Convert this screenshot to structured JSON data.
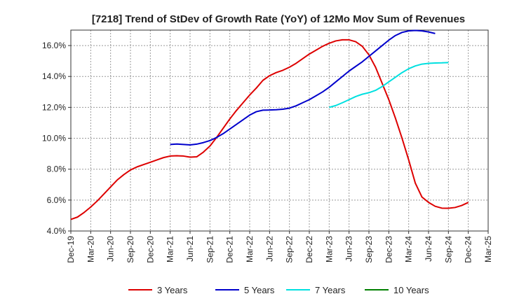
{
  "chart_data": {
    "type": "line",
    "title": "[7218]  Trend of StDev of Growth Rate (YoY) of 12Mo Mov Sum of Revenues",
    "xlabel": "",
    "ylabel": "",
    "ylim": [
      4.0,
      17.0
    ],
    "yticks": [
      4.0,
      6.0,
      8.0,
      10.0,
      12.0,
      14.0,
      16.0
    ],
    "ytick_labels": [
      "4.0%",
      "6.0%",
      "8.0%",
      "10.0%",
      "12.0%",
      "14.0%",
      "16.0%"
    ],
    "x_start": "Dec-19",
    "xtick_labels": [
      "Dec-19",
      "Mar-20",
      "Jun-20",
      "Sep-20",
      "Dec-20",
      "Mar-21",
      "Jun-21",
      "Sep-21",
      "Dec-21",
      "Mar-22",
      "Jun-22",
      "Sep-22",
      "Dec-22",
      "Mar-23",
      "Jun-23",
      "Sep-23",
      "Dec-23",
      "Mar-24",
      "Jun-24",
      "Sep-24",
      "Dec-24",
      "Mar-25"
    ],
    "grid": true,
    "legend_position": "bottom",
    "series": [
      {
        "name": "3 Years",
        "color": "#dd0000",
        "start_index": 0,
        "values": [
          4.75,
          4.9,
          5.2,
          5.55,
          5.95,
          6.4,
          6.85,
          7.3,
          7.65,
          7.95,
          8.15,
          8.3,
          8.45,
          8.6,
          8.75,
          8.85,
          8.87,
          8.85,
          8.78,
          8.8,
          9.1,
          9.5,
          10.05,
          10.65,
          11.25,
          11.8,
          12.3,
          12.8,
          13.25,
          13.75,
          14.05,
          14.25,
          14.4,
          14.6,
          14.85,
          15.15,
          15.45,
          15.7,
          15.95,
          16.15,
          16.3,
          16.37,
          16.37,
          16.25,
          15.95,
          15.4,
          14.6,
          13.55,
          12.5,
          11.3,
          10.0,
          8.6,
          7.1,
          6.2,
          5.85,
          5.6,
          5.48,
          5.47,
          5.52,
          5.65,
          5.85
        ]
      },
      {
        "name": "5 Years",
        "color": "#0000cc",
        "start_index": 15,
        "values": [
          9.6,
          9.63,
          9.6,
          9.57,
          9.62,
          9.72,
          9.85,
          10.05,
          10.3,
          10.6,
          10.9,
          11.2,
          11.5,
          11.72,
          11.82,
          11.83,
          11.85,
          11.88,
          11.95,
          12.1,
          12.3,
          12.5,
          12.75,
          13.0,
          13.3,
          13.65,
          14.0,
          14.35,
          14.65,
          14.95,
          15.3,
          15.65,
          16.0,
          16.35,
          16.65,
          16.85,
          16.95,
          16.98,
          16.95,
          16.88,
          16.78
        ]
      },
      {
        "name": "7 Years",
        "color": "#00e0e0",
        "start_index": 39,
        "values": [
          12.0,
          12.12,
          12.3,
          12.5,
          12.7,
          12.85,
          12.95,
          13.1,
          13.35,
          13.65,
          13.95,
          14.25,
          14.5,
          14.68,
          14.8,
          14.85,
          14.87,
          14.88,
          14.9
        ]
      },
      {
        "name": "10 Years",
        "color": "#008000",
        "start_index": 0,
        "values": []
      }
    ]
  }
}
